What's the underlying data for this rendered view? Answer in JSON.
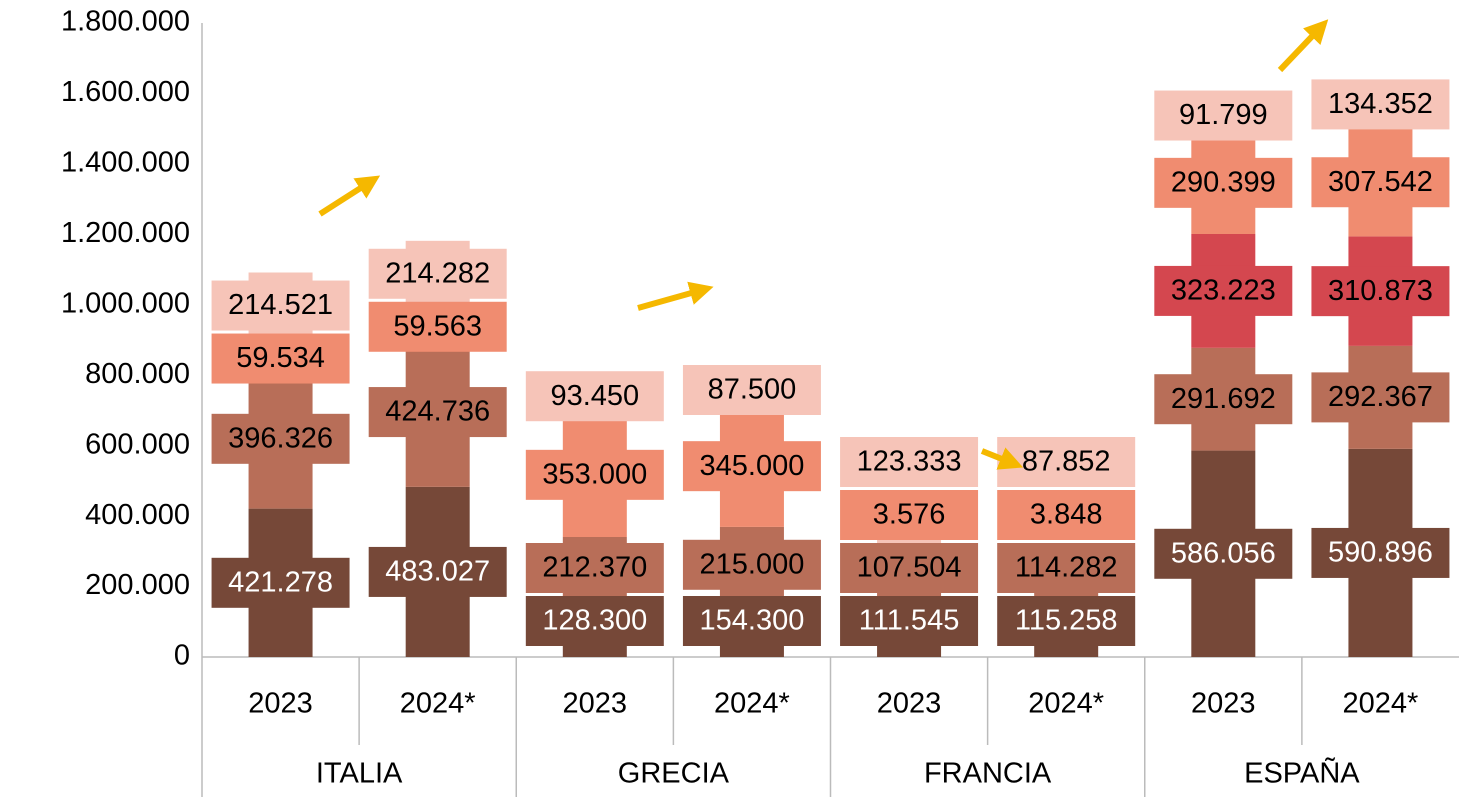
{
  "chart_data": {
    "type": "stacked_bar",
    "categories": [
      "2023",
      "2024*",
      "2023",
      "2024*",
      "2023",
      "2024*",
      "2023",
      "2024*"
    ],
    "groups": [
      "ITALIA",
      "GRECIA",
      "FRANCIA",
      "ESPAÑA"
    ],
    "series": [
      {
        "color": "#764838",
        "label_color": "#ffffff",
        "values": [
          421278,
          483027,
          128300,
          154300,
          111545,
          115258,
          586056,
          590896
        ],
        "value_labels": [
          "421.278",
          "483.027",
          "128.300",
          "154.300",
          "111.545",
          "115.258",
          "586.056",
          "590.896"
        ]
      },
      {
        "color": "#b86e58",
        "label_color": "#000000",
        "values": [
          396326,
          424736,
          212370,
          215000,
          107504,
          114282,
          291692,
          292367
        ],
        "value_labels": [
          "396.326",
          "424.736",
          "212.370",
          "215.000",
          "107.504",
          "114.282",
          "291.692",
          "292.367"
        ]
      },
      {
        "color": "#d4474f",
        "label_color": "#000000",
        "values": [
          null,
          null,
          null,
          null,
          null,
          null,
          323223,
          310873
        ],
        "value_labels": [
          null,
          null,
          null,
          null,
          null,
          null,
          "323.223",
          "310.873"
        ]
      },
      {
        "color": "#f08c70",
        "label_color": "#000000",
        "values": [
          59534,
          59563,
          353000,
          345000,
          3576,
          3848,
          290399,
          307542
        ],
        "value_labels": [
          "59.534",
          "59.563",
          "353.000",
          "345.000",
          "3.576",
          "3.848",
          "290.399",
          "307.542"
        ]
      },
      {
        "color": "#f6c4b8",
        "label_color": "#000000",
        "values": [
          214521,
          214282,
          93450,
          87500,
          123333,
          87852,
          91799,
          134352
        ],
        "value_labels": [
          "214.521",
          "214.282",
          "93.450",
          "87.500",
          "123.333",
          "87.852",
          "91.799",
          "134.352"
        ]
      }
    ],
    "ylim": [
      0,
      1800000
    ],
    "yticks": [
      0,
      {
        "value": 200000,
        "label": "200.000"
      },
      {
        "value": 400000,
        "label": "400.000"
      },
      {
        "value": 600000,
        "label": "600.000"
      },
      {
        "value": 800000,
        "label": "800.000"
      },
      {
        "value": 1000000,
        "label": "1.000.000"
      },
      {
        "value": 1200000,
        "label": "1.200.000"
      },
      {
        "value": 1400000,
        "label": "1.400.000"
      },
      {
        "value": 1600000,
        "label": "1.600.000"
      },
      {
        "value": 1800000,
        "label": "1.800.000"
      }
    ],
    "grid": false
  }
}
